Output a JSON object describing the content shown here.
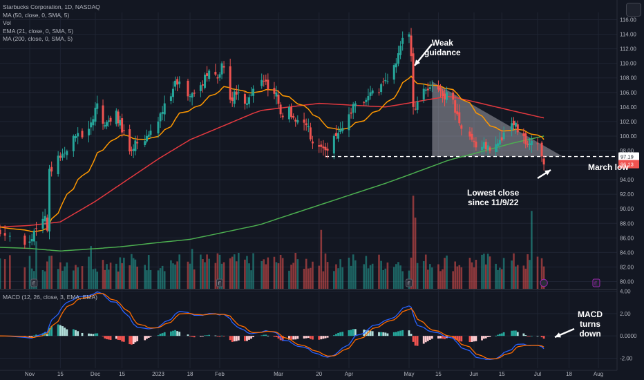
{
  "legend": {
    "title": "Starbucks Corporation, 1D, NASDAQ",
    "ma50": "MA (50, close, 0, SMA, 5)",
    "vol": "Vol",
    "ema21": "EMA (21, close, 0, SMA, 5)",
    "ma200": "MA (200, close, 0, SMA, 5)"
  },
  "macd_legend": "MACD (12, 26, close, 3, EMA, EMA)",
  "annotations": {
    "weak_1": "Weak",
    "weak_2": "guidance",
    "march_low": "March low",
    "lowest_1": "Lowest close",
    "lowest_2": "since 11/9/22",
    "macd_1": "MACD",
    "macd_2": "turns",
    "macd_3": "down"
  },
  "price_labels": {
    "level": "97.19",
    "last": "96.13"
  },
  "colors": {
    "background": "#131722",
    "up": "#26a69a",
    "down": "#ef5350",
    "ema21": "#ff9800",
    "ma50": "#e5393f",
    "ma200": "#4caf50",
    "macd_line": "#2962ff",
    "signal_line": "#ff6d00"
  },
  "chart_data": {
    "type": "candlestick",
    "price_axis": {
      "ticks": [
        "116.00",
        "114.00",
        "112.00",
        "110.00",
        "108.00",
        "106.00",
        "104.00",
        "102.00",
        "100.00",
        "98.00",
        "96.00",
        "94.00",
        "92.00",
        "90.00",
        "88.00",
        "86.00",
        "84.00",
        "82.00",
        "80.00"
      ],
      "range": [
        79,
        117
      ]
    },
    "macd_axis": {
      "ticks": [
        "4.00",
        "2.00",
        "0.0000",
        "-2.00"
      ],
      "range": [
        -2.9,
        4.1
      ]
    },
    "time_axis": [
      "Nov",
      "15",
      "Dec",
      "15",
      "2023",
      "18",
      "Feb",
      "Mar",
      "20",
      "Apr",
      "May",
      "15",
      "Jun",
      "15",
      "Jul",
      "18",
      "Aug"
    ],
    "period": {
      "start": "2022-10-26",
      "end": "2023-07-06"
    },
    "anchors": [
      [
        "2022-10-26",
        86.5
      ],
      [
        "2022-11-01",
        85.5
      ],
      [
        "2022-11-03",
        87
      ],
      [
        "2022-11-08",
        89
      ],
      [
        "2022-11-09",
        87
      ],
      [
        "2022-11-10",
        95.5
      ],
      [
        "2022-11-15",
        97
      ],
      [
        "2022-11-22",
        100
      ],
      [
        "2022-11-28",
        101
      ],
      [
        "2022-12-02",
        104.5
      ],
      [
        "2022-12-06",
        101.5
      ],
      [
        "2022-12-12",
        103.5
      ],
      [
        "2022-12-15",
        100.5
      ],
      [
        "2022-12-20",
        98
      ],
      [
        "2022-12-23",
        99
      ],
      [
        "2022-12-28",
        100
      ],
      [
        "2023-01-03",
        102
      ],
      [
        "2023-01-06",
        104.5
      ],
      [
        "2023-01-10",
        106.5
      ],
      [
        "2023-01-13",
        107.5
      ],
      [
        "2023-01-18",
        105.5
      ],
      [
        "2023-01-23",
        107
      ],
      [
        "2023-01-27",
        109
      ],
      [
        "2023-02-01",
        108.5
      ],
      [
        "2023-02-02",
        110
      ],
      [
        "2023-02-06",
        105
      ],
      [
        "2023-02-10",
        106
      ],
      [
        "2023-02-14",
        104.5
      ],
      [
        "2023-02-17",
        106.5
      ],
      [
        "2023-02-22",
        107.5
      ],
      [
        "2023-02-28",
        106
      ],
      [
        "2023-03-02",
        103
      ],
      [
        "2023-03-06",
        104
      ],
      [
        "2023-03-09",
        102
      ],
      [
        "2023-03-14",
        101.5
      ],
      [
        "2023-03-17",
        99
      ],
      [
        "2023-03-21",
        98.5
      ],
      [
        "2023-03-24",
        98
      ],
      [
        "2023-03-28",
        100
      ],
      [
        "2023-04-03",
        103
      ],
      [
        "2023-04-06",
        104.5
      ],
      [
        "2023-04-12",
        105.5
      ],
      [
        "2023-04-17",
        106
      ],
      [
        "2023-04-21",
        107.5
      ],
      [
        "2023-04-25",
        110
      ],
      [
        "2023-04-28",
        113.5
      ],
      [
        "2023-05-01",
        114
      ],
      [
        "2023-05-02",
        111
      ],
      [
        "2023-05-03",
        104
      ],
      [
        "2023-05-08",
        106.5
      ],
      [
        "2023-05-12",
        107
      ],
      [
        "2023-05-17",
        105.5
      ],
      [
        "2023-05-22",
        105
      ],
      [
        "2023-05-24",
        103
      ],
      [
        "2023-05-26",
        101
      ],
      [
        "2023-05-31",
        99.5
      ],
      [
        "2023-06-05",
        98.5
      ],
      [
        "2023-06-09",
        98
      ],
      [
        "2023-06-13",
        99
      ],
      [
        "2023-06-16",
        100.5
      ],
      [
        "2023-06-21",
        101.5
      ],
      [
        "2023-06-26",
        100
      ],
      [
        "2023-06-29",
        99
      ],
      [
        "2023-07-03",
        99
      ],
      [
        "2023-07-05",
        97.2
      ],
      [
        "2023-07-06",
        96.1
      ]
    ],
    "ma200_anchors": [
      [
        "2022-10-26",
        84.7
      ],
      [
        "2022-11-15",
        84.2
      ],
      [
        "2022-12-15",
        84.8
      ],
      [
        "2023-01-18",
        85.8
      ],
      [
        "2023-02-20",
        87.8
      ],
      [
        "2023-03-20",
        90.5
      ],
      [
        "2023-04-20",
        93.5
      ],
      [
        "2023-05-20",
        96.7
      ],
      [
        "2023-06-20",
        99
      ],
      [
        "2023-07-06",
        100
      ]
    ],
    "ma50_anchors": [
      [
        "2022-10-26",
        87.5
      ],
      [
        "2022-11-15",
        88.2
      ],
      [
        "2022-12-15",
        93.5
      ],
      [
        "2023-01-18",
        99.5
      ],
      [
        "2023-02-20",
        103.5
      ],
      [
        "2023-03-20",
        104.5
      ],
      [
        "2023-04-20",
        104
      ],
      [
        "2023-05-20",
        105.5
      ],
      [
        "2023-06-20",
        103.5
      ],
      [
        "2023-07-06",
        102.5
      ]
    ],
    "volume_range": [
      0,
      0.8
    ],
    "special_volume_bars": [
      [
        "2022-11-04",
        0.5
      ],
      [
        "2022-11-29",
        0.45
      ],
      [
        "2023-01-19",
        0.42
      ],
      [
        "2023-03-21",
        0.62
      ],
      [
        "2023-05-03",
        0.98
      ],
      [
        "2023-05-04",
        0.75
      ],
      [
        "2023-06-30",
        0.82
      ]
    ],
    "triangle": {
      "start": "2023-05-12",
      "apex_date": "2023-07-15",
      "top_start": 107.5,
      "bottom": 97.19
    },
    "march_low": 97.19
  }
}
